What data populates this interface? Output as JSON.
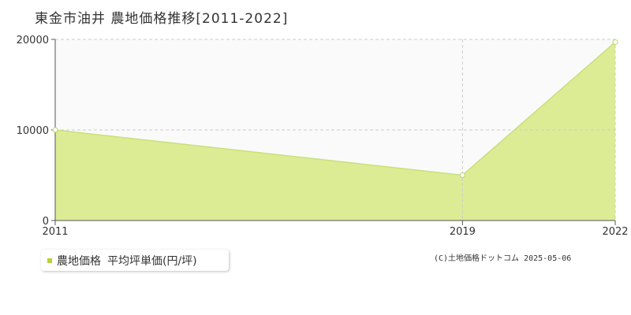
{
  "title": "東金市油井  農地価格推移[2011-2022]",
  "legend": {
    "series_label": "農地価格",
    "unit_label": "平均坪単価(円/坪)"
  },
  "copyright": "(C)土地価格ドットコム 2025-05-06",
  "colors": {
    "fill": "#dcec94",
    "line": "#c8e07a",
    "marker_fill": "#ffffff",
    "marker_stroke": "#b8d468",
    "legend_marker": "#b5d334",
    "grid": "#cccccc",
    "axis": "#555555",
    "plot_bg": "#fafafa"
  },
  "chart_data": {
    "type": "area",
    "x": [
      "2011",
      "2019",
      "2022"
    ],
    "series": [
      {
        "name": "農地価格",
        "values": [
          10000,
          5000,
          19700
        ]
      }
    ],
    "yticks": [
      "0",
      "10000",
      "20000"
    ],
    "ylim": [
      0,
      20000
    ],
    "grid": true,
    "legend_position": "bottom-left"
  }
}
